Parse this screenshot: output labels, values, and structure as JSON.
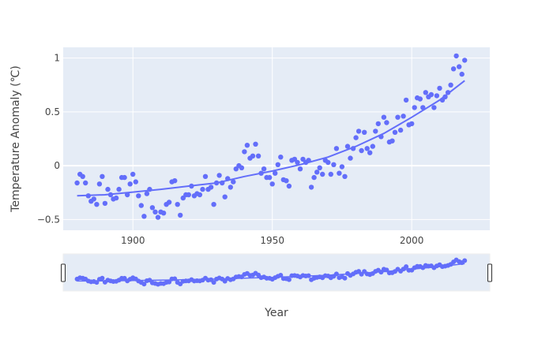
{
  "chart_data": {
    "type": "scatter",
    "title": "",
    "xlabel": "Year",
    "ylabel": "Temperature Anomaly (℃)",
    "xlim": [
      1875,
      2028
    ],
    "ylim": [
      -0.6,
      1.1
    ],
    "x_ticks": [
      1900,
      1950,
      2000
    ],
    "y_ticks": [
      1,
      0.5,
      0,
      -0.5
    ],
    "x_tick_labels": [
      "1900",
      "1950",
      "2000"
    ],
    "y_tick_labels": [
      "1",
      "0.5",
      "0",
      "−0.5"
    ],
    "grid": true,
    "legend": "none",
    "range_slider": true,
    "colors": {
      "marker": "#636efa",
      "trend": "#636efa",
      "plot_bg": "#e5ecf6",
      "grid": "#ffffff"
    },
    "series": [
      {
        "mode": "markers",
        "x": [
          1880,
          1881,
          1882,
          1883,
          1884,
          1885,
          1886,
          1887,
          1888,
          1889,
          1890,
          1891,
          1892,
          1893,
          1894,
          1895,
          1896,
          1897,
          1898,
          1899,
          1900,
          1901,
          1902,
          1903,
          1904,
          1905,
          1906,
          1907,
          1908,
          1909,
          1910,
          1911,
          1912,
          1913,
          1914,
          1915,
          1916,
          1917,
          1918,
          1919,
          1920,
          1921,
          1922,
          1923,
          1924,
          1925,
          1926,
          1927,
          1928,
          1929,
          1930,
          1931,
          1932,
          1933,
          1934,
          1935,
          1936,
          1937,
          1938,
          1939,
          1940,
          1941,
          1942,
          1943,
          1944,
          1945,
          1946,
          1947,
          1948,
          1949,
          1950,
          1951,
          1952,
          1953,
          1954,
          1955,
          1956,
          1957,
          1958,
          1959,
          1960,
          1961,
          1962,
          1963,
          1964,
          1965,
          1966,
          1967,
          1968,
          1969,
          1970,
          1971,
          1972,
          1973,
          1974,
          1975,
          1976,
          1977,
          1978,
          1979,
          1980,
          1981,
          1982,
          1983,
          1984,
          1985,
          1986,
          1987,
          1988,
          1989,
          1990,
          1991,
          1992,
          1993,
          1994,
          1995,
          1996,
          1997,
          1998,
          1999,
          2000,
          2001,
          2002,
          2003,
          2004,
          2005,
          2006,
          2007,
          2008,
          2009,
          2010,
          2011,
          2012,
          2013,
          2014,
          2015,
          2016,
          2017,
          2018,
          2019
        ],
        "y": [
          -0.16,
          -0.08,
          -0.1,
          -0.16,
          -0.28,
          -0.33,
          -0.31,
          -0.36,
          -0.17,
          -0.1,
          -0.35,
          -0.22,
          -0.27,
          -0.31,
          -0.3,
          -0.22,
          -0.11,
          -0.11,
          -0.27,
          -0.17,
          -0.08,
          -0.15,
          -0.28,
          -0.37,
          -0.47,
          -0.26,
          -0.22,
          -0.39,
          -0.43,
          -0.48,
          -0.43,
          -0.44,
          -0.36,
          -0.34,
          -0.15,
          -0.14,
          -0.36,
          -0.46,
          -0.3,
          -0.27,
          -0.27,
          -0.19,
          -0.28,
          -0.26,
          -0.27,
          -0.22,
          -0.1,
          -0.22,
          -0.2,
          -0.36,
          -0.16,
          -0.09,
          -0.16,
          -0.29,
          -0.12,
          -0.2,
          -0.15,
          -0.03,
          -0.0,
          -0.02,
          0.13,
          0.19,
          0.07,
          0.09,
          0.2,
          0.09,
          -0.07,
          -0.03,
          -0.11,
          -0.11,
          -0.17,
          -0.07,
          0.01,
          0.08,
          -0.13,
          -0.14,
          -0.19,
          0.05,
          0.06,
          0.03,
          -0.03,
          0.06,
          0.03,
          0.05,
          -0.2,
          -0.11,
          -0.06,
          -0.02,
          -0.08,
          0.05,
          0.03,
          -0.08,
          0.01,
          0.16,
          -0.07,
          -0.01,
          -0.1,
          0.18,
          0.07,
          0.16,
          0.26,
          0.32,
          0.14,
          0.31,
          0.16,
          0.12,
          0.18,
          0.32,
          0.39,
          0.27,
          0.45,
          0.4,
          0.22,
          0.23,
          0.31,
          0.45,
          0.33,
          0.46,
          0.61,
          0.38,
          0.39,
          0.54,
          0.63,
          0.62,
          0.54,
          0.68,
          0.64,
          0.66,
          0.54,
          0.65,
          0.72,
          0.61,
          0.64,
          0.68,
          0.75,
          0.9,
          1.02,
          0.92,
          0.85,
          0.98
        ]
      },
      {
        "mode": "lines",
        "x": [
          1880,
          1890,
          1900,
          1910,
          1920,
          1930,
          1940,
          1950,
          1960,
          1970,
          1980,
          1990,
          2000,
          2010,
          2019
        ],
        "y": [
          -0.28,
          -0.27,
          -0.245,
          -0.22,
          -0.19,
          -0.16,
          -0.1,
          -0.05,
          0.01,
          0.08,
          0.18,
          0.3,
          0.45,
          0.61,
          0.79
        ]
      }
    ]
  }
}
